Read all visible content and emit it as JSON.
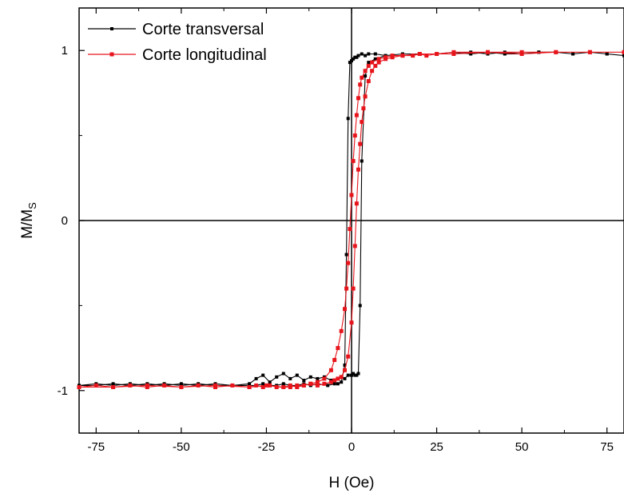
{
  "chart_data": {
    "type": "line",
    "xlabel": "H (Oe)",
    "ylabel": "M/M",
    "ylabel_subscript": "S",
    "xlim": [
      -80,
      80
    ],
    "ylim": [
      -1.25,
      1.25
    ],
    "x_ticks": [
      -75,
      -50,
      -25,
      0,
      25,
      50,
      75
    ],
    "x_tick_labels": [
      "-75",
      "-50",
      "-25",
      "0",
      "25",
      "50",
      "75"
    ],
    "y_ticks": [
      -1,
      0,
      1
    ],
    "y_tick_labels": [
      "-1",
      "0",
      "1"
    ],
    "reference_lines": {
      "x": 0,
      "y": 0
    },
    "legend_position": "top-left",
    "grid": false,
    "series": [
      {
        "name": "Corte transversal",
        "color": "#000000",
        "marker": "square",
        "x": [
          -80,
          -75,
          -70,
          -65,
          -60,
          -55,
          -50,
          -45,
          -40,
          -35,
          -30,
          -28,
          -26,
          -24,
          -22,
          -20,
          -18,
          -16,
          -14,
          -12,
          -10,
          -8,
          -6,
          -4,
          -3,
          -2,
          -1,
          0,
          0.5,
          1,
          1.5,
          2,
          2.5,
          3,
          4,
          5,
          7,
          10,
          15,
          20,
          25,
          30,
          35,
          40,
          45,
          50,
          55,
          60,
          65,
          70,
          75,
          80,
          80,
          75,
          70,
          65,
          60,
          55,
          50,
          45,
          40,
          35,
          30,
          25,
          20,
          15,
          10,
          7,
          5,
          4,
          3,
          2,
          1.5,
          1,
          0.5,
          0,
          -0.5,
          -1,
          -1.5,
          -2,
          -3,
          -4,
          -5,
          -7,
          -10,
          -12,
          -14,
          -16,
          -18,
          -20,
          -22,
          -24,
          -26,
          -28,
          -30,
          -35,
          -40,
          -45,
          -50,
          -55,
          -60,
          -65,
          -70,
          -75,
          -80
        ],
        "y": [
          -0.97,
          -0.97,
          -0.96,
          -0.97,
          -0.96,
          -0.97,
          -0.96,
          -0.97,
          -0.96,
          -0.97,
          -0.96,
          -0.93,
          -0.91,
          -0.95,
          -0.92,
          -0.9,
          -0.93,
          -0.91,
          -0.94,
          -0.92,
          -0.93,
          -0.92,
          -0.94,
          -0.93,
          -0.92,
          -0.93,
          -0.91,
          -0.91,
          -0.9,
          -0.91,
          -0.91,
          -0.9,
          -0.5,
          0.35,
          0.85,
          0.93,
          0.95,
          0.97,
          0.98,
          0.98,
          0.98,
          0.98,
          0.99,
          0.98,
          0.99,
          0.98,
          0.99,
          0.99,
          0.98,
          0.99,
          0.98,
          0.97,
          0.97,
          0.98,
          0.99,
          0.98,
          0.99,
          0.99,
          0.98,
          0.98,
          0.99,
          0.98,
          0.99,
          0.98,
          0.98,
          0.98,
          0.97,
          0.98,
          0.98,
          0.97,
          0.98,
          0.97,
          0.96,
          0.96,
          0.95,
          0.94,
          0.93,
          0.6,
          -0.2,
          -0.85,
          -0.95,
          -0.96,
          -0.96,
          -0.97,
          -0.96,
          -0.97,
          -0.96,
          -0.97,
          -0.97,
          -0.96,
          -0.97,
          -0.97,
          -0.96,
          -0.97,
          -0.97,
          -0.97,
          -0.97,
          -0.96,
          -0.97,
          -0.96,
          -0.97,
          -0.96,
          -0.97,
          -0.96,
          -0.97
        ]
      },
      {
        "name": "Corte longitudinal",
        "color": "#e8141c",
        "marker": "square",
        "x": [
          -80,
          -75,
          -70,
          -65,
          -60,
          -55,
          -50,
          -45,
          -40,
          -35,
          -30,
          -28,
          -26,
          -24,
          -22,
          -20,
          -18,
          -16,
          -14,
          -12,
          -10,
          -8,
          -6,
          -5,
          -4,
          -3,
          -2,
          -1,
          0,
          0.5,
          1,
          1.5,
          2,
          2.5,
          3,
          3.5,
          4,
          5,
          6,
          7,
          8,
          10,
          12,
          15,
          18,
          20,
          22,
          25,
          30,
          40,
          50,
          60,
          70,
          80,
          80,
          70,
          60,
          50,
          40,
          30,
          25,
          20,
          15,
          12,
          10,
          8,
          6,
          5,
          4,
          3,
          2.5,
          2,
          1.5,
          1,
          0.5,
          0,
          -0.5,
          -1,
          -1.5,
          -2,
          -3,
          -4,
          -5,
          -6,
          -8,
          -10,
          -12,
          -14,
          -16,
          -18,
          -20,
          -25,
          -30,
          -40,
          -50,
          -60,
          -70,
          -80
        ],
        "y": [
          -0.98,
          -0.97,
          -0.98,
          -0.97,
          -0.98,
          -0.97,
          -0.98,
          -0.97,
          -0.98,
          -0.97,
          -0.98,
          -0.97,
          -0.98,
          -0.97,
          -0.98,
          -0.98,
          -0.97,
          -0.98,
          -0.97,
          -0.96,
          -0.97,
          -0.96,
          -0.95,
          -0.94,
          -0.93,
          -0.92,
          -0.88,
          -0.8,
          -0.6,
          -0.4,
          -0.15,
          0.1,
          0.3,
          0.45,
          0.58,
          0.66,
          0.73,
          0.82,
          0.88,
          0.91,
          0.93,
          0.95,
          0.96,
          0.97,
          0.97,
          0.98,
          0.97,
          0.98,
          0.98,
          0.99,
          0.99,
          0.99,
          0.99,
          0.99,
          0.99,
          0.99,
          0.99,
          0.98,
          0.99,
          0.99,
          0.98,
          0.98,
          0.97,
          0.97,
          0.96,
          0.95,
          0.93,
          0.91,
          0.88,
          0.84,
          0.8,
          0.72,
          0.62,
          0.5,
          0.35,
          0.15,
          -0.05,
          -0.25,
          -0.4,
          -0.52,
          -0.65,
          -0.75,
          -0.82,
          -0.88,
          -0.93,
          -0.95,
          -0.96,
          -0.97,
          -0.97,
          -0.98,
          -0.98,
          -0.97,
          -0.98,
          -0.97,
          -0.98,
          -0.97,
          -0.98,
          -0.98
        ]
      }
    ]
  }
}
